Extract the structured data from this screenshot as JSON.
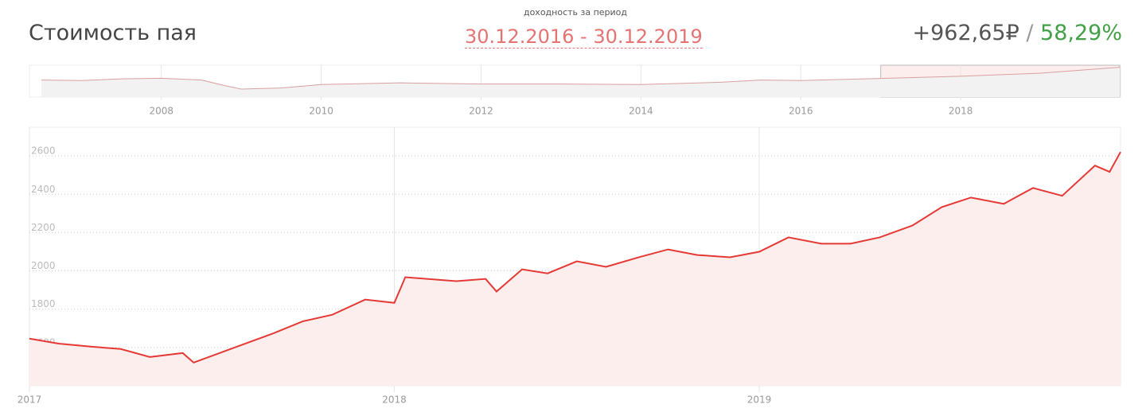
{
  "header": {
    "title": "Стоимость пая",
    "period_caption": "доходность за период",
    "period": "30.12.2016 - 30.12.2019",
    "gain": "+962,65₽",
    "separator": "/",
    "gain_percent": "58,29%"
  },
  "chart_data": [
    {
      "type": "line",
      "color": "#d9a0a0",
      "x": [
        2006.5,
        2007,
        2007.5,
        2008,
        2008.5,
        2008.8,
        2009,
        2009.5,
        2010,
        2011,
        2012,
        2013,
        2014,
        2015,
        2015.5,
        2016,
        2017,
        2018,
        2019,
        2019.99
      ],
      "values": [
        1500,
        1450,
        1600,
        1650,
        1500,
        1000,
        700,
        800,
        1100,
        1250,
        1150,
        1150,
        1100,
        1300,
        1500,
        1450,
        1640,
        1830,
        2100,
        2620
      ],
      "xlim": [
        2006.35,
        2020
      ],
      "ylim": [
        0,
        2800
      ],
      "xticks": [
        2008,
        2010,
        2012,
        2014,
        2016,
        2018
      ]
    },
    {
      "type": "line",
      "color": "#e53935",
      "x": [
        2017,
        2017.08,
        2017.17,
        2017.25,
        2017.33,
        2017.42,
        2017.45,
        2017.58,
        2017.67,
        2017.75,
        2017.83,
        2017.92,
        2018,
        2018.03,
        2018.17,
        2018.25,
        2018.28,
        2018.35,
        2018.42,
        2018.5,
        2018.58,
        2018.67,
        2018.75,
        2018.83,
        2018.92,
        2019,
        2019.08,
        2019.17,
        2019.25,
        2019.33,
        2019.42,
        2019.5,
        2019.58,
        2019.67,
        2019.75,
        2019.83,
        2019.92,
        2019.96,
        2019.99
      ],
      "values": [
        1646,
        1620,
        1604,
        1592,
        1550,
        1571,
        1521,
        1612,
        1675,
        1737,
        1771,
        1850,
        1833,
        1967,
        1946,
        1958,
        1892,
        2008,
        1987,
        2050,
        2021,
        2071,
        2112,
        2083,
        2071,
        2100,
        2175,
        2142,
        2142,
        2175,
        2237,
        2333,
        2383,
        2350,
        2433,
        2392,
        2550,
        2517,
        2621
      ],
      "xlim": [
        2017,
        2019.99
      ],
      "ylim": [
        1400,
        2750
      ],
      "xticks": [
        2017,
        2018,
        2019
      ],
      "yticks": [
        1600,
        1800,
        2000,
        2200,
        2400,
        2600
      ],
      "grid": true
    }
  ]
}
